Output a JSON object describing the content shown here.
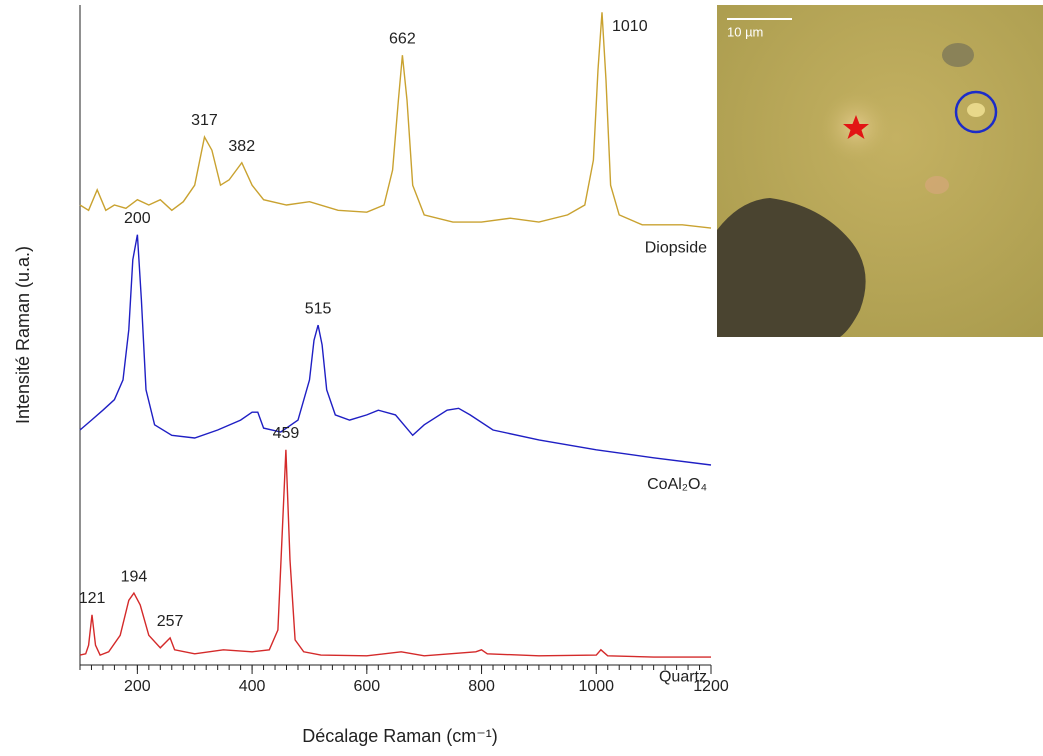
{
  "chart_data": {
    "type": "line",
    "x_label": "Décalage Raman (cm⁻¹)",
    "y_label": "Intensité Raman (u.a.)",
    "xlim": [
      100,
      1200
    ],
    "ylim": [
      0,
      100
    ],
    "xticks": [
      200,
      400,
      600,
      800,
      1000,
      1200
    ],
    "xminorticks": [
      100,
      120,
      140,
      160,
      180,
      200,
      220,
      240,
      260,
      280,
      300,
      320,
      340,
      360,
      380,
      400,
      420,
      440,
      460,
      480,
      500,
      520,
      540,
      560,
      580,
      600,
      620,
      640,
      660,
      680,
      700,
      720,
      740,
      760,
      780,
      800,
      820,
      840,
      860,
      880,
      900,
      920,
      940,
      960,
      980,
      1000,
      1020,
      1040,
      1060,
      1080,
      1100,
      1120,
      1140,
      1160,
      1180,
      1200
    ],
    "grid": false,
    "series": [
      {
        "name": "Diopside",
        "color": "#c9a230",
        "x": [
          100,
          115,
          130,
          145,
          160,
          180,
          200,
          220,
          240,
          260,
          280,
          300,
          317,
          330,
          345,
          360,
          382,
          400,
          420,
          460,
          500,
          550,
          600,
          630,
          645,
          655,
          662,
          670,
          680,
          700,
          750,
          800,
          850,
          900,
          950,
          980,
          995,
          1003,
          1010,
          1017,
          1025,
          1040,
          1080,
          1150,
          1200
        ],
        "values": [
          69.7,
          68.9,
          72.0,
          68.9,
          69.7,
          69.2,
          70.5,
          69.7,
          70.5,
          68.9,
          70.2,
          72.7,
          80.0,
          78.0,
          72.7,
          73.5,
          76.1,
          72.7,
          70.5,
          69.7,
          70.2,
          68.9,
          68.6,
          69.7,
          75.0,
          85.6,
          92.4,
          85.6,
          72.7,
          68.2,
          67.1,
          67.1,
          67.7,
          67.1,
          68.2,
          69.7,
          76.5,
          90.2,
          98.9,
          88.6,
          72.7,
          68.2,
          66.7,
          66.7,
          66.2
        ],
        "peaks": [
          317,
          382,
          662,
          1010
        ]
      },
      {
        "name": "CoAl₂O₄",
        "color": "#1f1fc4",
        "x": [
          100,
          120,
          140,
          160,
          175,
          185,
          192,
          200,
          207,
          215,
          230,
          260,
          300,
          340,
          380,
          400,
          410,
          420,
          450,
          480,
          500,
          508,
          515,
          522,
          530,
          545,
          570,
          600,
          620,
          650,
          680,
          700,
          740,
          760,
          780,
          820,
          900,
          1000,
          1100,
          1200
        ],
        "values": [
          35.6,
          37.1,
          38.6,
          40.2,
          43.2,
          50.8,
          61.4,
          65.2,
          55.3,
          41.7,
          36.4,
          34.8,
          34.4,
          35.6,
          37.1,
          38.3,
          38.3,
          35.9,
          35.3,
          37.1,
          43.2,
          49.2,
          51.5,
          48.5,
          41.7,
          37.9,
          37.1,
          37.9,
          38.6,
          37.9,
          34.8,
          36.4,
          38.6,
          38.9,
          37.9,
          35.6,
          34.1,
          32.6,
          31.4,
          30.3
        ],
        "peaks": [
          200,
          515
        ]
      },
      {
        "name": "Quartz",
        "color": "#d42a2a",
        "x": [
          100,
          110,
          115,
          121,
          127,
          135,
          150,
          170,
          185,
          194,
          205,
          220,
          240,
          257,
          265,
          300,
          350,
          400,
          430,
          445,
          452,
          459,
          466,
          475,
          490,
          520,
          600,
          660,
          700,
          790,
          800,
          810,
          900,
          1000,
          1008,
          1020,
          1100,
          1200
        ],
        "values": [
          1.5,
          1.7,
          3.0,
          7.6,
          3.0,
          1.5,
          2.0,
          4.5,
          9.8,
          10.9,
          9.1,
          4.5,
          2.6,
          4.1,
          2.3,
          1.7,
          2.3,
          2.0,
          2.3,
          5.3,
          18.9,
          32.6,
          15.9,
          3.8,
          2.0,
          1.5,
          1.4,
          2.0,
          1.4,
          2.0,
          2.3,
          1.7,
          1.4,
          1.5,
          2.3,
          1.4,
          1.2,
          1.2
        ],
        "peaks": [
          121,
          194,
          257,
          459
        ]
      }
    ]
  },
  "inset": {
    "scale_label": "10 µm"
  }
}
